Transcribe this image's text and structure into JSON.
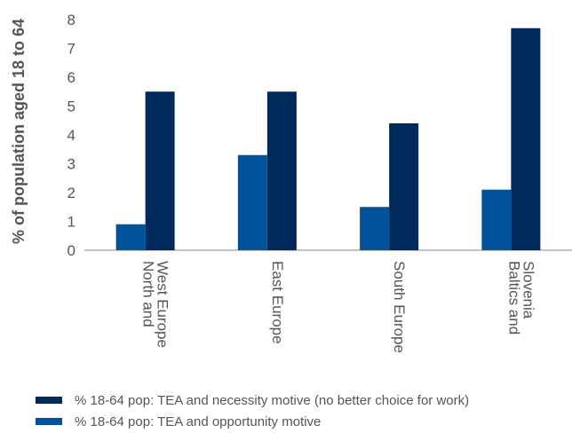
{
  "chart_data": {
    "type": "bar",
    "categories": [
      [
        "North and",
        "West Europe"
      ],
      [
        "East Europe"
      ],
      [
        "South Europe"
      ],
      [
        "Baltics and",
        "Slovenia"
      ]
    ],
    "series": [
      {
        "name": "% 18-64 pop: TEA and opportunity motive",
        "color": "#00539b",
        "values": [
          0.9,
          3.3,
          1.5,
          2.1
        ]
      },
      {
        "name": "% 18-64 pop: TEA and necessity motive (no better choice for work)",
        "color": "#002a5c",
        "values": [
          5.5,
          5.5,
          4.4,
          7.7
        ]
      }
    ],
    "ylabel": "% of population aged 18 to 64",
    "ylim": [
      0,
      8
    ],
    "yticks": [
      "0",
      "1",
      "2",
      "3",
      "4",
      "5",
      "6",
      "7",
      "8"
    ],
    "grid": false,
    "legend_position": "bottom"
  },
  "legend": [
    {
      "label": "% 18-64 pop: TEA and necessity motive (no better choice for work)",
      "color": "#002a5c"
    },
    {
      "label": "% 18-64 pop: TEA and opportunity motive",
      "color": "#00539b"
    }
  ]
}
